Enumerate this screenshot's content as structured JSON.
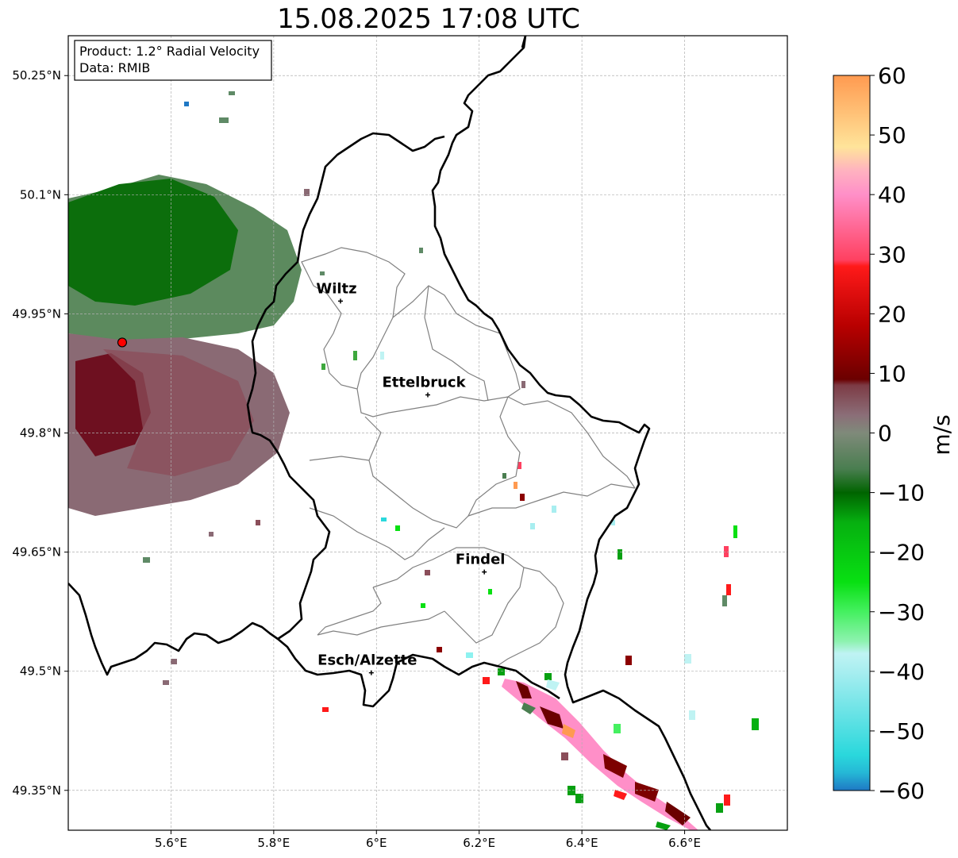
{
  "title": "15.08.2025 17:08 UTC",
  "info": {
    "product": "Product: 1.2° Radial Velocity",
    "data": "Data: RMIB"
  },
  "lon_ticks": [
    {
      "value": 5.6,
      "label": "5.6°E"
    },
    {
      "value": 5.8,
      "label": "5.8°E"
    },
    {
      "value": 6.0,
      "label": "6°E"
    },
    {
      "value": 6.2,
      "label": "6.2°E"
    },
    {
      "value": 6.4,
      "label": "6.4°E"
    },
    {
      "value": 6.6,
      "label": "6.6°E"
    }
  ],
  "lat_ticks": [
    {
      "value": 50.25,
      "label": "50.25°N"
    },
    {
      "value": 50.1,
      "label": "50.1°N"
    },
    {
      "value": 49.95,
      "label": "49.95°N"
    },
    {
      "value": 49.8,
      "label": "49.8°N"
    },
    {
      "value": 49.65,
      "label": "49.65°N"
    },
    {
      "value": 49.5,
      "label": "49.5°N"
    },
    {
      "value": 49.35,
      "label": "49.35°N"
    }
  ],
  "cities": [
    {
      "name": "Wiltz",
      "lon": 5.93,
      "lat": 49.966
    },
    {
      "name": "Ettelbruck",
      "lon": 6.1,
      "lat": 49.848
    },
    {
      "name": "Findel",
      "lon": 6.21,
      "lat": 49.625
    },
    {
      "name": "Esch/Alzette",
      "lon": 5.99,
      "lat": 49.498
    }
  ],
  "radar_site": {
    "lon": 5.505,
    "lat": 49.914
  },
  "colorbar": {
    "label": "m/s",
    "min": -60,
    "max": 60,
    "ticks": [
      {
        "value": 60,
        "label": "60"
      },
      {
        "value": 50,
        "label": "50"
      },
      {
        "value": 40,
        "label": "40"
      },
      {
        "value": 30,
        "label": "30"
      },
      {
        "value": 20,
        "label": "20"
      },
      {
        "value": 10,
        "label": "10"
      },
      {
        "value": 0,
        "label": "0"
      },
      {
        "value": -10,
        "label": "−10"
      },
      {
        "value": -20,
        "label": "−20"
      },
      {
        "value": -30,
        "label": "−30"
      },
      {
        "value": -40,
        "label": "−40"
      },
      {
        "value": -50,
        "label": "−50"
      },
      {
        "value": -60,
        "label": "−60"
      }
    ],
    "stops": [
      {
        "value": -60,
        "color": "#1f78c4"
      },
      {
        "value": -57,
        "color": "#25b8d6"
      },
      {
        "value": -54,
        "color": "#2ad8dc"
      },
      {
        "value": -40,
        "color": "#a8eef0"
      },
      {
        "value": -37,
        "color": "#bff3f3"
      },
      {
        "value": -35,
        "color": "#8ef2b0"
      },
      {
        "value": -30,
        "color": "#45f060"
      },
      {
        "value": -25,
        "color": "#08e012"
      },
      {
        "value": -15,
        "color": "#06b010"
      },
      {
        "value": -10,
        "color": "#006400"
      },
      {
        "value": -6,
        "color": "#4a7e50"
      },
      {
        "value": 0,
        "color": "#7f8a7a"
      },
      {
        "value": 3,
        "color": "#8b6e78"
      },
      {
        "value": 8,
        "color": "#7d3b45"
      },
      {
        "value": 9,
        "color": "#6b0000"
      },
      {
        "value": 18,
        "color": "#b80000"
      },
      {
        "value": 28,
        "color": "#ff1a1a"
      },
      {
        "value": 29,
        "color": "#ff4060"
      },
      {
        "value": 40,
        "color": "#ff8fc8"
      },
      {
        "value": 44,
        "color": "#ffb2c0"
      },
      {
        "value": 48,
        "color": "#ffe49a"
      },
      {
        "value": 60,
        "color": "#ff9a50"
      }
    ]
  },
  "colors": {
    "border": "#000000",
    "canton": "#808080",
    "grid": "#b0b0b0",
    "radar_site": "#ff0000"
  }
}
